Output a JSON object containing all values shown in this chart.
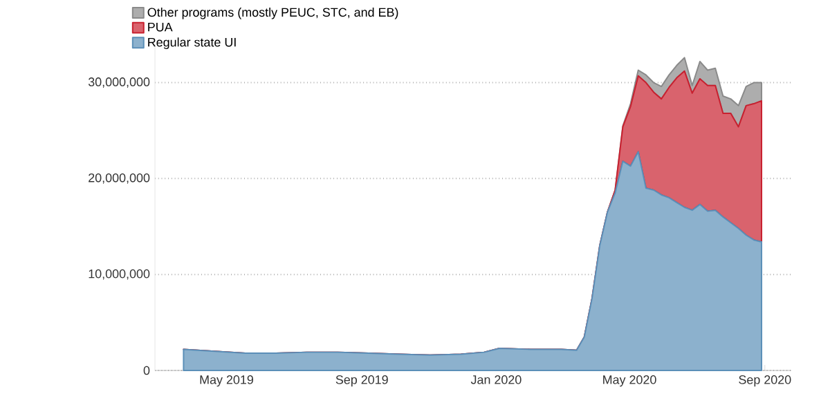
{
  "chart_data": {
    "type": "area",
    "stacked": true,
    "x": [
      "2019-03-23",
      "2019-04-20",
      "2019-05-18",
      "2019-06-15",
      "2019-07-13",
      "2019-08-10",
      "2019-09-07",
      "2019-10-05",
      "2019-11-02",
      "2019-11-30",
      "2019-12-21",
      "2020-01-04",
      "2020-02-01",
      "2020-02-29",
      "2020-03-14",
      "2020-03-21",
      "2020-03-28",
      "2020-04-04",
      "2020-04-11",
      "2020-04-18",
      "2020-04-25",
      "2020-05-02",
      "2020-05-09",
      "2020-05-16",
      "2020-05-23",
      "2020-05-30",
      "2020-06-06",
      "2020-06-13",
      "2020-06-20",
      "2020-06-27",
      "2020-07-04",
      "2020-07-11",
      "2020-07-18",
      "2020-07-25",
      "2020-08-01",
      "2020-08-08",
      "2020-08-15",
      "2020-08-22",
      "2020-08-29"
    ],
    "series": [
      {
        "name": "Regular state UI",
        "color": "#5b8fb8",
        "values": [
          2200000,
          2000000,
          1800000,
          1800000,
          1900000,
          1900000,
          1800000,
          1700000,
          1600000,
          1700000,
          1900000,
          2300000,
          2200000,
          2200000,
          2100000,
          3500000,
          7500000,
          13000000,
          16500000,
          18500000,
          21800000,
          21300000,
          22800000,
          19000000,
          18800000,
          18300000,
          18000000,
          17500000,
          17000000,
          16700000,
          17300000,
          16600000,
          16700000,
          16000000,
          15400000,
          14800000,
          14100000,
          13600000,
          13400000
        ]
      },
      {
        "name": "PUA",
        "color": "#c8202f",
        "values": [
          0,
          0,
          0,
          0,
          0,
          0,
          0,
          0,
          0,
          0,
          0,
          0,
          0,
          0,
          0,
          0,
          0,
          0,
          0,
          300000,
          3600000,
          6200000,
          7900000,
          11000000,
          10200000,
          10000000,
          11500000,
          13000000,
          14200000,
          12200000,
          13100000,
          13100000,
          13000000,
          10800000,
          11400000,
          10600000,
          13500000,
          14200000,
          14700000
        ]
      },
      {
        "name": "Other programs (mostly PEUC, STC, and EB)",
        "color": "#8a8a8a",
        "values": [
          0,
          0,
          0,
          0,
          0,
          0,
          0,
          0,
          0,
          0,
          0,
          0,
          0,
          0,
          0,
          0,
          0,
          0,
          0,
          0,
          100000,
          300000,
          600000,
          800000,
          1000000,
          1300000,
          1300000,
          1300000,
          1400000,
          800000,
          1800000,
          1600000,
          1800000,
          1800000,
          1500000,
          2200000,
          2000000,
          2200000,
          1900000
        ]
      }
    ],
    "xlim": [
      "2019-02-25",
      "2020-09-25"
    ],
    "xticks": [
      {
        "value": "2019-05-01",
        "label": "May 2019"
      },
      {
        "value": "2019-09-01",
        "label": "Sep 2019"
      },
      {
        "value": "2020-01-01",
        "label": "Jan 2020"
      },
      {
        "value": "2020-05-01",
        "label": "May 2020"
      },
      {
        "value": "2020-09-01",
        "label": "Sep 2020"
      }
    ],
    "yticks": [
      {
        "value": 0,
        "label": "0"
      },
      {
        "value": 10000000,
        "label": "10,000,000"
      },
      {
        "value": 20000000,
        "label": "20,000,000"
      },
      {
        "value": 30000000,
        "label": "30,000,000"
      }
    ],
    "ylim": [
      0,
      34000000
    ],
    "grid": "y",
    "legend": "top left"
  }
}
